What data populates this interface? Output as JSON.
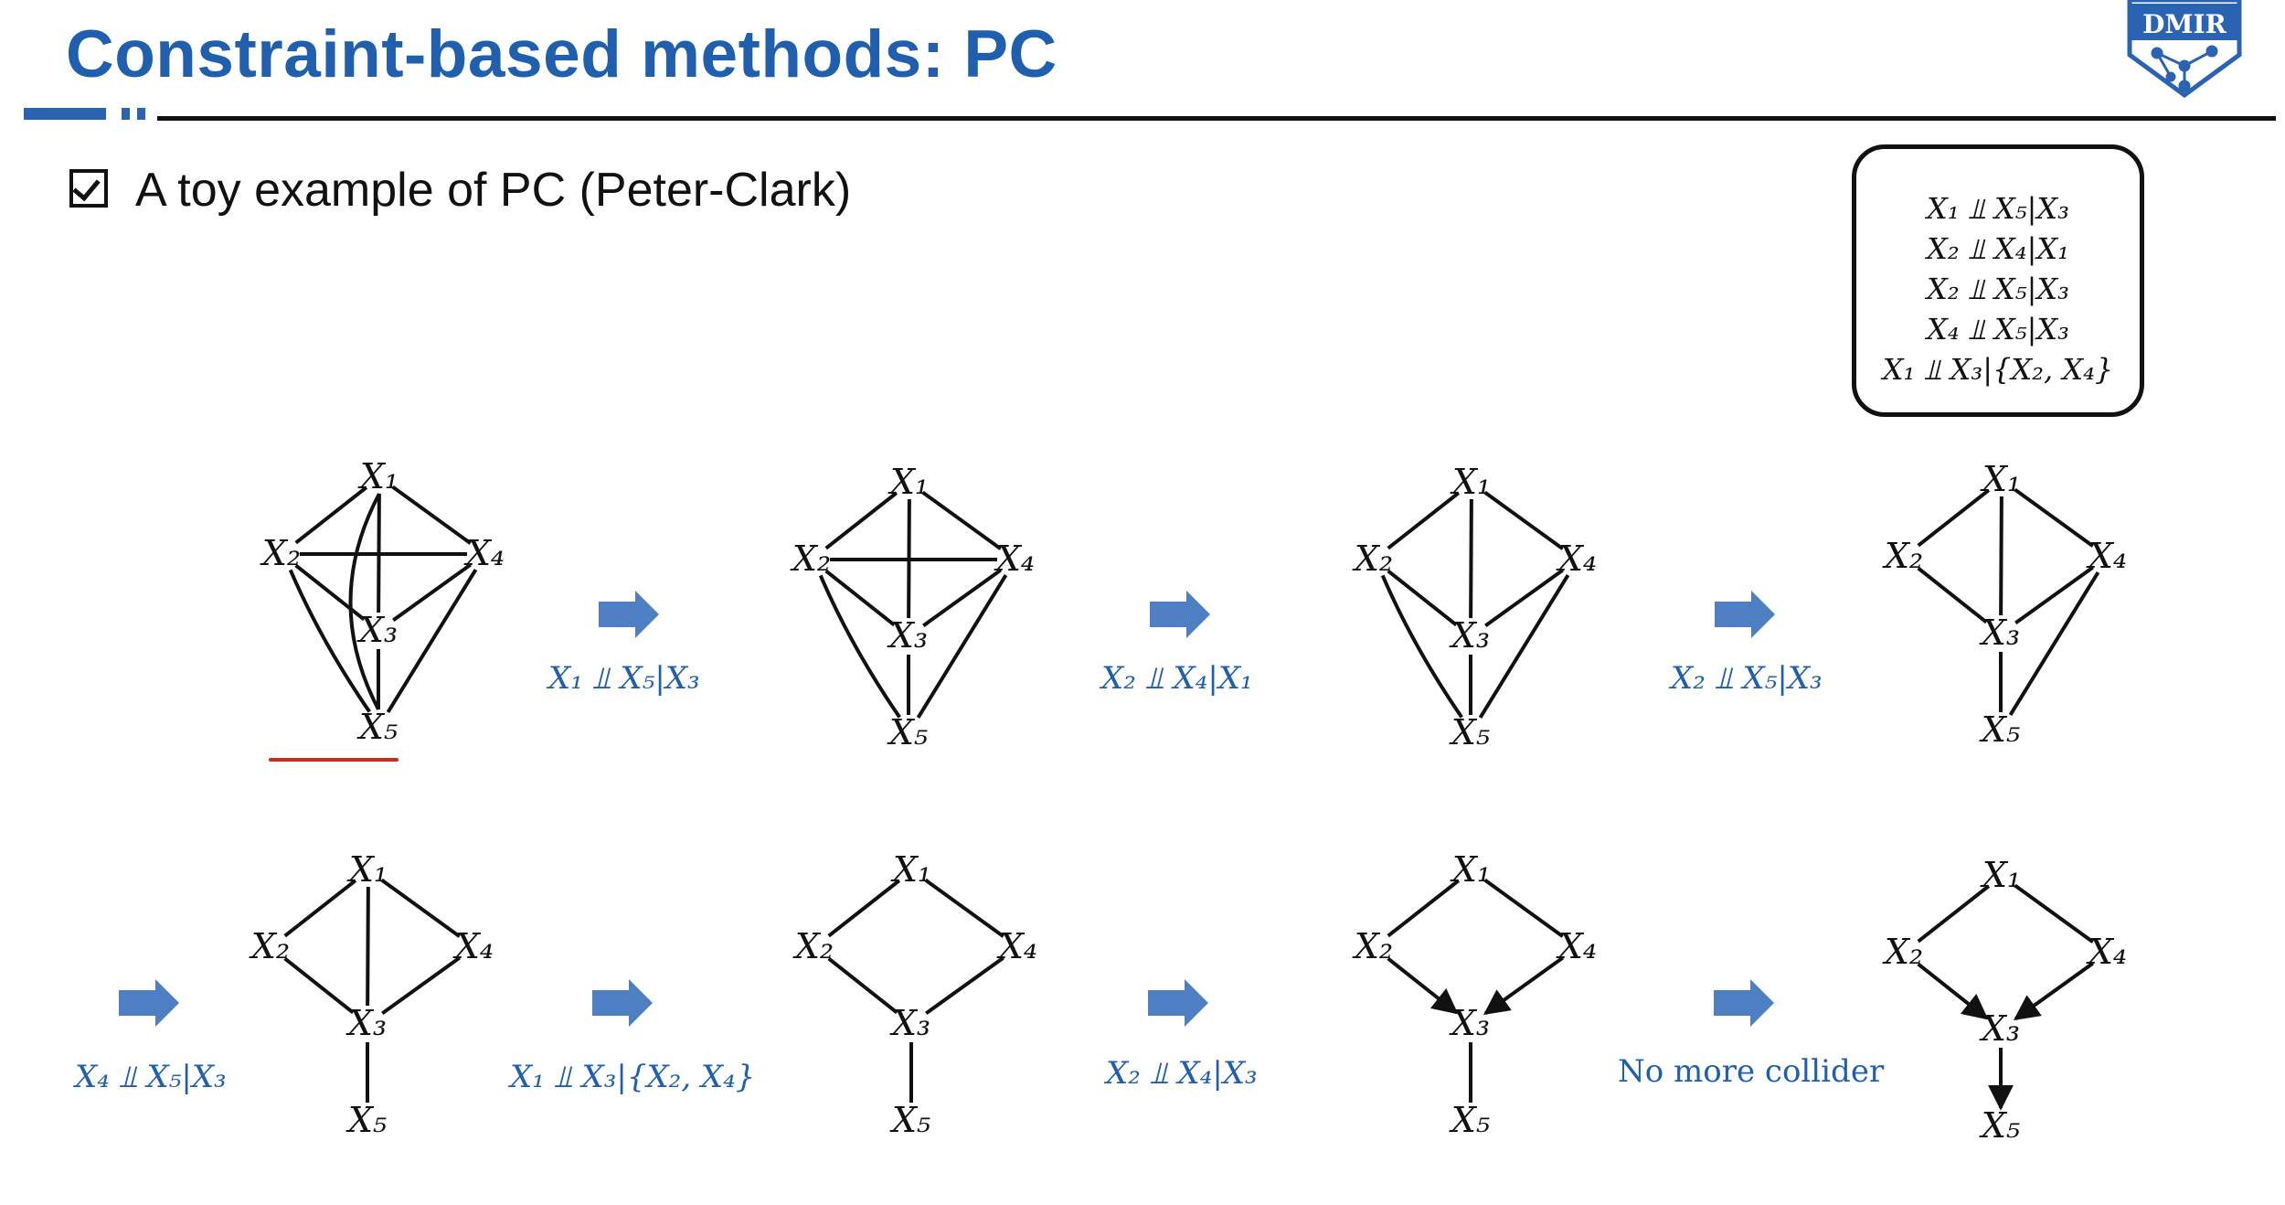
{
  "slide": {
    "title": "Constraint-based methods: PC",
    "bullet": "A toy example of PC (Peter-Clark)",
    "logo_text": "DMIR"
  },
  "independencies": [
    "X₁ ⫫ X₅|X₃",
    "X₂ ⫫ X₄|X₁",
    "X₂ ⫫ X₅|X₃",
    "X₄ ⫫ X₅|X₃",
    "X₁ ⫫ X₃|{X₂, X₄}"
  ],
  "nodes": [
    "X1",
    "X2",
    "X3",
    "X4",
    "X5"
  ],
  "node_labels": {
    "X1": "X₁",
    "X2": "X₂",
    "X3": "X₃",
    "X4": "X₄",
    "X5": "X₅"
  },
  "steps": [
    {
      "edges": [
        [
          "X1",
          "X2"
        ],
        [
          "X1",
          "X3"
        ],
        [
          "X1",
          "X4"
        ],
        [
          "X1",
          "X5"
        ],
        [
          "X2",
          "X3"
        ],
        [
          "X2",
          "X4"
        ],
        [
          "X2",
          "X5"
        ],
        [
          "X3",
          "X4"
        ],
        [
          "X3",
          "X5"
        ],
        [
          "X4",
          "X5"
        ]
      ],
      "arrows": []
    },
    {
      "edges": [
        [
          "X1",
          "X2"
        ],
        [
          "X1",
          "X3"
        ],
        [
          "X1",
          "X4"
        ],
        [
          "X2",
          "X3"
        ],
        [
          "X2",
          "X4"
        ],
        [
          "X2",
          "X5"
        ],
        [
          "X3",
          "X4"
        ],
        [
          "X3",
          "X5"
        ],
        [
          "X4",
          "X5"
        ]
      ],
      "arrows": []
    },
    {
      "edges": [
        [
          "X1",
          "X2"
        ],
        [
          "X1",
          "X3"
        ],
        [
          "X1",
          "X4"
        ],
        [
          "X2",
          "X3"
        ],
        [
          "X2",
          "X5"
        ],
        [
          "X3",
          "X4"
        ],
        [
          "X3",
          "X5"
        ],
        [
          "X4",
          "X5"
        ]
      ],
      "arrows": []
    },
    {
      "edges": [
        [
          "X1",
          "X2"
        ],
        [
          "X1",
          "X3"
        ],
        [
          "X1",
          "X4"
        ],
        [
          "X2",
          "X3"
        ],
        [
          "X3",
          "X4"
        ],
        [
          "X3",
          "X5"
        ],
        [
          "X4",
          "X5"
        ]
      ],
      "arrows": []
    },
    {
      "edges": [
        [
          "X1",
          "X2"
        ],
        [
          "X1",
          "X3"
        ],
        [
          "X1",
          "X4"
        ],
        [
          "X2",
          "X3"
        ],
        [
          "X3",
          "X4"
        ],
        [
          "X3",
          "X5"
        ]
      ],
      "arrows": []
    },
    {
      "edges": [
        [
          "X1",
          "X2"
        ],
        [
          "X1",
          "X4"
        ],
        [
          "X2",
          "X3"
        ],
        [
          "X3",
          "X4"
        ],
        [
          "X3",
          "X5"
        ]
      ],
      "arrows": []
    },
    {
      "edges": [
        [
          "X1",
          "X2"
        ],
        [
          "X1",
          "X4"
        ],
        [
          "X3",
          "X5"
        ]
      ],
      "arrows": [
        [
          "X2",
          "X3"
        ],
        [
          "X4",
          "X3"
        ]
      ]
    },
    {
      "edges": [
        [
          "X1",
          "X2"
        ],
        [
          "X1",
          "X4"
        ]
      ],
      "arrows": [
        [
          "X2",
          "X3"
        ],
        [
          "X4",
          "X3"
        ],
        [
          "X3",
          "X5"
        ]
      ]
    }
  ],
  "transitions": [
    {
      "text": "X₁ ⫫ X₅|X₃"
    },
    {
      "text": "X₂ ⫫ X₄|X₁"
    },
    {
      "text": "X₂ ⫫ X₅|X₃"
    },
    {
      "text": "X₄ ⫫ X₅|X₃"
    },
    {
      "text": "X₁ ⫫ X₃|{X₂, X₄}"
    },
    {
      "text": "X₂ ⫫ X₄|X₃"
    },
    {
      "text": "No more collider"
    }
  ],
  "colors": {
    "title": "#1f5fae",
    "arrow": "#4f7fc3",
    "label": "#1f5fae",
    "highlight": "#d02a1e"
  }
}
